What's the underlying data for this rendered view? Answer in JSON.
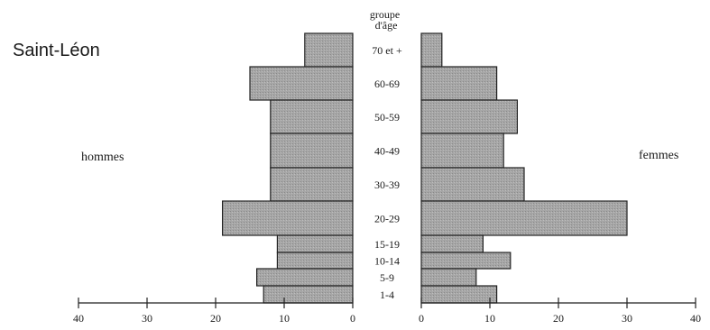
{
  "chart_data": {
    "type": "bar",
    "title": "Saint-Léon",
    "age_group_header": "groupe\nd'âge",
    "left_label": "hommes",
    "right_label": "femmes",
    "categories": [
      "70 et +",
      "60-69",
      "50-59",
      "40-49",
      "30-39",
      "20-29",
      "15-19",
      "10-14",
      "5-9",
      "1-4"
    ],
    "series": [
      {
        "name": "hommes",
        "values": [
          7,
          15,
          12,
          12,
          12,
          19,
          11,
          11,
          14,
          13
        ]
      },
      {
        "name": "femmes",
        "values": [
          3,
          11,
          14,
          12,
          15,
          30,
          9,
          13,
          8,
          11
        ]
      }
    ],
    "xlim": [
      0,
      40
    ],
    "ticks": [
      0,
      10,
      20,
      30,
      40
    ],
    "bar_color": "#a9a9a9",
    "grid": false
  }
}
